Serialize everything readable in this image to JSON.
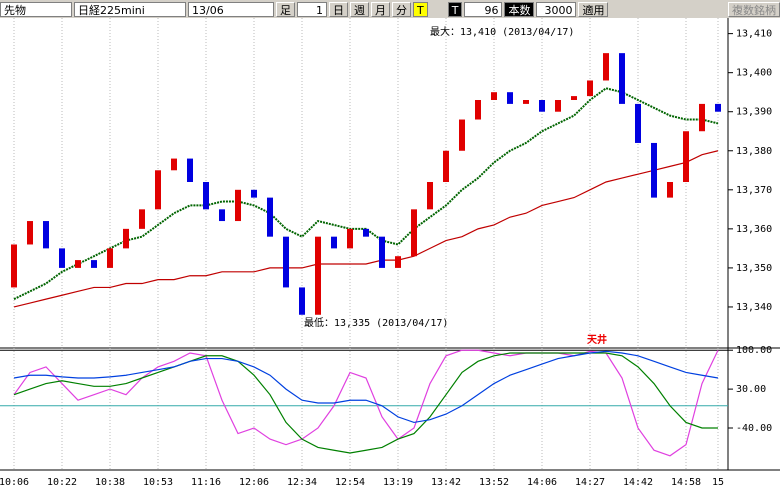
{
  "toolbar": {
    "instrument": "先物",
    "symbol": "日経225mini",
    "contract": "13/06",
    "bar_label": "足",
    "bar_size": "1",
    "day": "日",
    "week": "週",
    "month": "月",
    "minute": "分",
    "tick": "T",
    "tick2": "T",
    "tick_count": "96",
    "count_label": "本数",
    "count": "3000",
    "apply": "適用",
    "multi": "複数銘柄"
  },
  "chart_data": [
    {
      "type": "candlestick",
      "categories": [
        "10:06",
        null,
        null,
        "10:22",
        null,
        null,
        "10:38",
        null,
        null,
        "10:53",
        null,
        null,
        "11:16",
        null,
        null,
        "12:06",
        null,
        null,
        "12:34",
        null,
        null,
        "12:54",
        null,
        null,
        "13:19",
        null,
        null,
        "13:42",
        null,
        null,
        "13:52",
        null,
        null,
        "14:06",
        null,
        null,
        "14:27",
        null,
        null,
        "14:42",
        null,
        null,
        "14:58",
        null,
        "15"
      ],
      "open": [
        13345,
        13356,
        13362,
        13355,
        13350,
        13352,
        13350,
        13355,
        13360,
        13365,
        13375,
        13378,
        13372,
        13365,
        13362,
        13370,
        13368,
        13358,
        13345,
        13338,
        13358,
        13355,
        13360,
        13358,
        13350,
        13353,
        13365,
        13372,
        13380,
        13388,
        13393,
        13395,
        13392,
        13393,
        13390,
        13393,
        13394,
        13398,
        13405,
        13392,
        13382,
        13368,
        13372,
        13385,
        13392
      ],
      "close": [
        13356,
        13362,
        13355,
        13350,
        13352,
        13350,
        13355,
        13360,
        13365,
        13375,
        13378,
        13372,
        13365,
        13362,
        13370,
        13368,
        13358,
        13345,
        13338,
        13358,
        13355,
        13360,
        13358,
        13350,
        13353,
        13365,
        13372,
        13380,
        13388,
        13393,
        13395,
        13392,
        13393,
        13390,
        13393,
        13394,
        13398,
        13405,
        13392,
        13382,
        13368,
        13372,
        13385,
        13392,
        13390
      ],
      "up_color": "#e00000",
      "down_color": "#0000e0",
      "lines": [
        {
          "color": "#006400",
          "dash": true,
          "values": [
            13342,
            13344,
            13346,
            13349,
            13351,
            13353,
            13355,
            13357,
            13358,
            13361,
            13364,
            13366,
            13366,
            13367,
            13367,
            13366,
            13364,
            13360,
            13358,
            13362,
            13361,
            13360,
            13360,
            13357,
            13356,
            13360,
            13363,
            13366,
            13370,
            13373,
            13377,
            13380,
            13382,
            13385,
            13387,
            13389,
            13393,
            13396,
            13395,
            13393,
            13391,
            13389,
            13388,
            13388,
            13387
          ]
        },
        {
          "color": "#c00000",
          "dash": false,
          "values": [
            13340,
            13341,
            13342,
            13343,
            13344,
            13345,
            13345,
            13346,
            13346,
            13347,
            13347,
            13348,
            13348,
            13349,
            13349,
            13349,
            13350,
            13350,
            13350,
            13351,
            13351,
            13351,
            13351,
            13352,
            13352,
            13353,
            13355,
            13357,
            13358,
            13360,
            13361,
            13363,
            13364,
            13366,
            13367,
            13368,
            13370,
            13372,
            13373,
            13374,
            13375,
            13376,
            13377,
            13379,
            13380
          ]
        }
      ],
      "ylim": [
        13330,
        13414
      ],
      "yticks": [
        {
          "value": 13340,
          "label": "13,340"
        },
        {
          "value": 13350,
          "label": "13,350"
        },
        {
          "value": 13360,
          "label": "13,360"
        },
        {
          "value": 13370,
          "label": "13,370"
        },
        {
          "value": 13380,
          "label": "13,380"
        },
        {
          "value": 13390,
          "label": "13,390"
        },
        {
          "value": 13400,
          "label": "13,400"
        },
        {
          "value": 13410,
          "label": "13,410"
        }
      ],
      "annotations": [
        "最大：13,410 (2013/04/17)",
        "最低：13,335 (2013/04/17)"
      ]
    },
    {
      "type": "line",
      "series": [
        {
          "color": "#e040e0",
          "values": [
            20,
            60,
            70,
            40,
            10,
            20,
            30,
            20,
            50,
            70,
            80,
            95,
            90,
            10,
            -50,
            -40,
            -60,
            -70,
            -60,
            -40,
            0,
            60,
            50,
            -20,
            -60,
            -40,
            40,
            90,
            100,
            100,
            95,
            90,
            95,
            95,
            95,
            90,
            98,
            95,
            50,
            -40,
            -80,
            -90,
            -70,
            40,
            100
          ]
        },
        {
          "color": "#008000",
          "values": [
            20,
            30,
            40,
            45,
            40,
            35,
            35,
            40,
            50,
            60,
            70,
            80,
            90,
            90,
            80,
            55,
            20,
            -30,
            -60,
            -75,
            -80,
            -85,
            -80,
            -75,
            -60,
            -50,
            -20,
            20,
            60,
            80,
            90,
            95,
            95,
            95,
            95,
            95,
            95,
            95,
            90,
            70,
            40,
            0,
            -30,
            -40,
            -40
          ]
        },
        {
          "color": "#0040e0",
          "values": [
            50,
            55,
            55,
            52,
            50,
            50,
            52,
            55,
            60,
            65,
            70,
            80,
            85,
            85,
            80,
            70,
            55,
            30,
            10,
            5,
            5,
            10,
            10,
            0,
            -20,
            -30,
            -25,
            -15,
            0,
            20,
            40,
            55,
            65,
            75,
            85,
            90,
            95,
            98,
            95,
            90,
            80,
            70,
            60,
            55,
            50
          ]
        }
      ],
      "ylim": [
        -112,
        104
      ],
      "yticks": [
        {
          "value": 100,
          "label": "100.00"
        },
        {
          "value": 30,
          "label": "30.00"
        },
        {
          "value": -40,
          "label": "-40.00"
        }
      ],
      "zero_line": 0,
      "annotation": "天井"
    }
  ]
}
